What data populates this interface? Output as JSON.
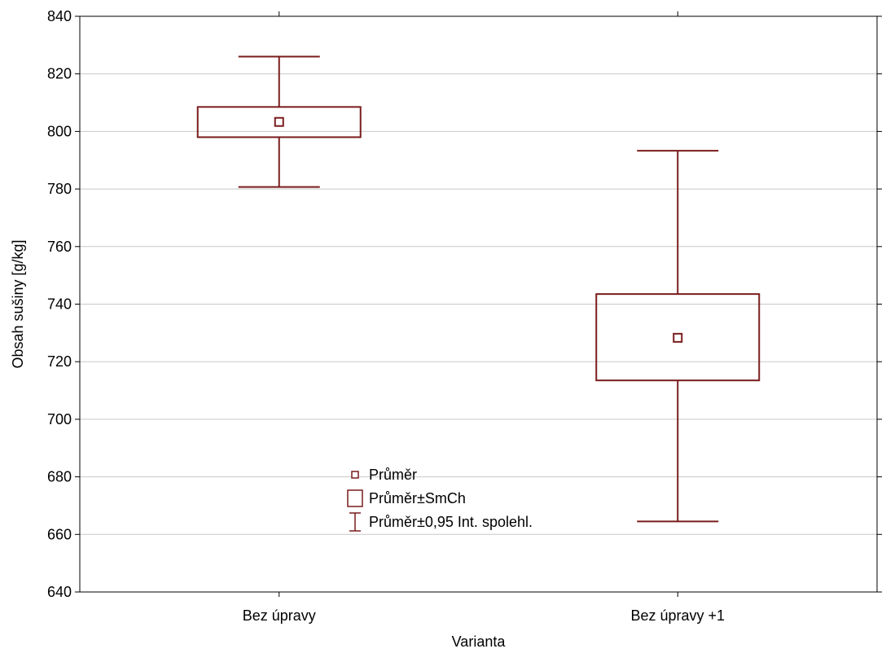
{
  "chart_data": {
    "type": "box",
    "xlabel": "Varianta",
    "ylabel": "Obsah sušiny [g/kg]",
    "ylim": [
      640,
      840
    ],
    "yticks": [
      640,
      660,
      680,
      700,
      720,
      740,
      760,
      780,
      800,
      820,
      840
    ],
    "grid": true,
    "categories": [
      "Bez úpravy",
      "Bez úpravy +1"
    ],
    "series": [
      {
        "category": "Bez úpravy",
        "mean": 803.3,
        "se_low": 798.0,
        "se_high": 808.5,
        "ci_low": 780.7,
        "ci_high": 826.0
      },
      {
        "category": "Bez úpravy +1",
        "mean": 728.3,
        "se_low": 713.5,
        "se_high": 743.5,
        "ci_low": 664.5,
        "ci_high": 793.3
      }
    ],
    "legend": {
      "placement": "bottom-center",
      "entries": [
        {
          "symbol": "mean-marker",
          "label": "Průměr"
        },
        {
          "symbol": "box",
          "label": "Průměr±SmCh"
        },
        {
          "symbol": "whisker",
          "label": "Průměr±0,95 Int. spolehl."
        }
      ]
    },
    "colors": {
      "marks": "#7a1c1c",
      "grid": "#c8c8c8",
      "axis": "#000000"
    }
  }
}
